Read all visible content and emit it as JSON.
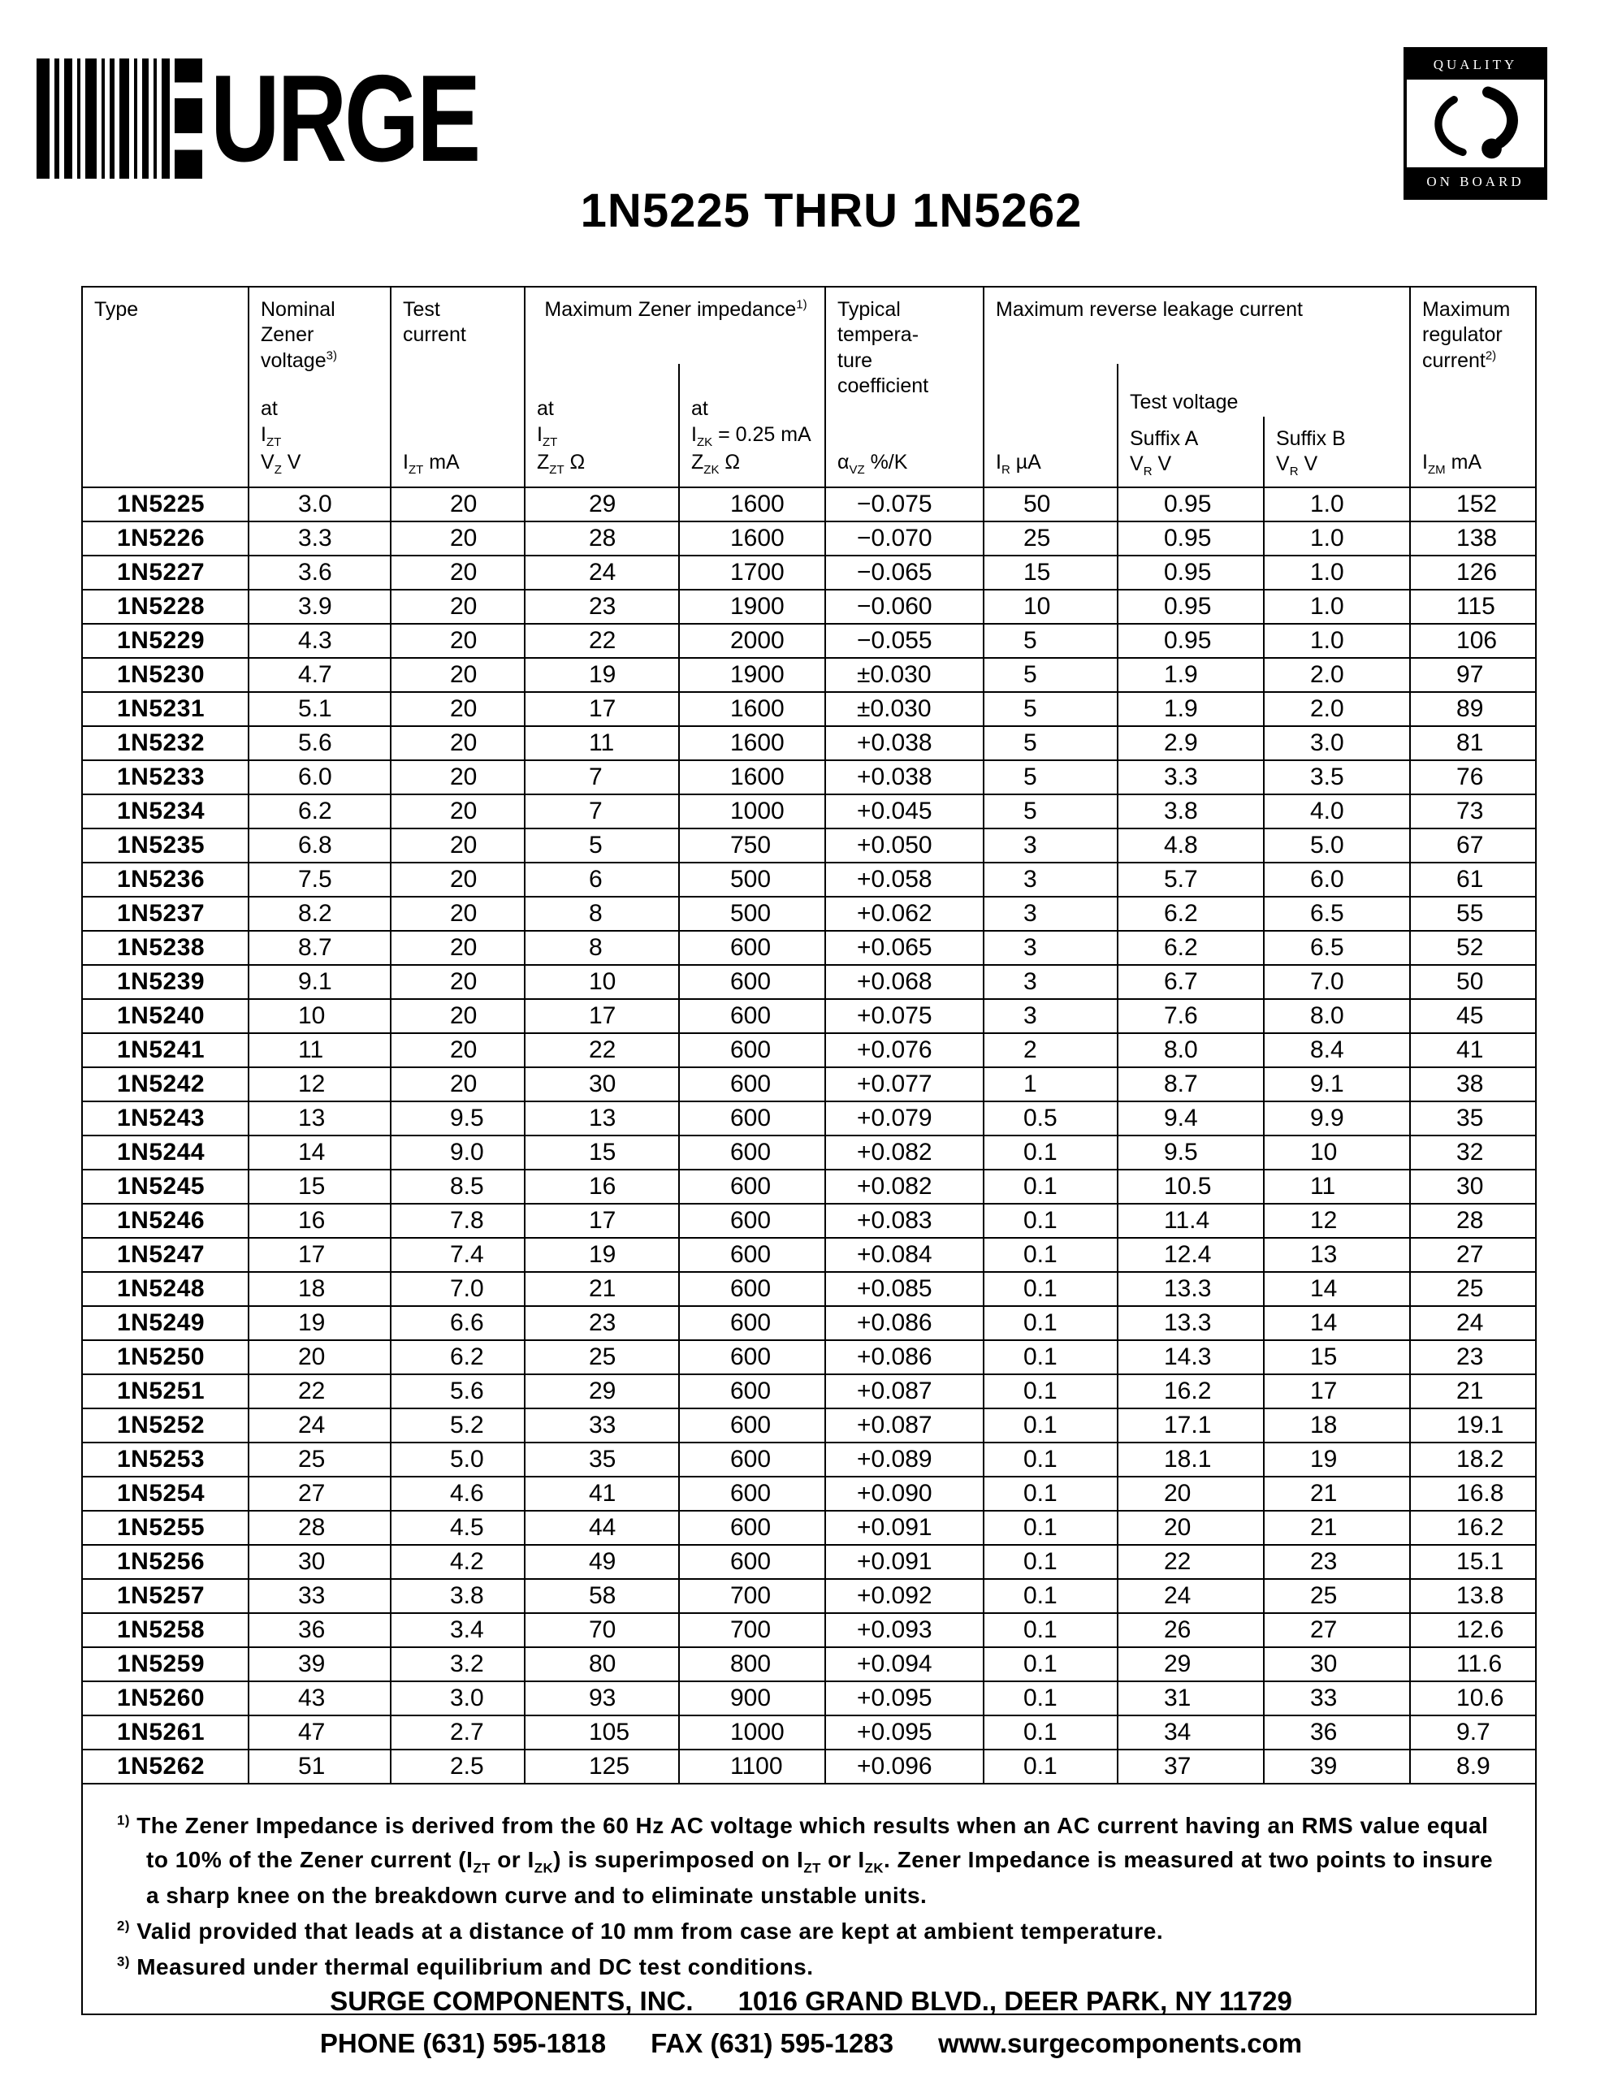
{
  "logo": {
    "brand_text": "SURGE",
    "brand_letters_after_bars": "URGE"
  },
  "badge": {
    "top": "QUALITY",
    "bottom": "ON BOARD"
  },
  "title": "1N5225 THRU 1N5262",
  "table": {
    "headers": {
      "type": "Type",
      "nominal": "Nominal\nZener\nvoltage^3)^",
      "nominal_sub": "at\nI~ZT~\nV~Z~ V",
      "test_current": "Test\ncurrent",
      "test_current_sub": "I~ZT~ mA",
      "impedance": "Maximum Zener impedance^1)^",
      "impedance_sub1": "at\nI~ZT~\nZ~ZT~ Ω",
      "impedance_sub2": "at\nI~ZK~ = 0.25 mA\nZ~ZK~ Ω",
      "temp": "Typical\ntempera-\nture\ncoefficient",
      "temp_sub": "α~VZ~ %/K",
      "leakage": "Maximum reverse leakage current",
      "leakage_sub_ir": "I~R~ µA",
      "test_voltage": "Test voltage",
      "suffix_a": "Suffix A\nV~R~ V",
      "suffix_b": "Suffix B\nV~R~ V",
      "regulator": "Maximum\nregulator\ncurrent^2)^",
      "regulator_sub": "I~ZM~ mA"
    },
    "rows": [
      [
        "1N5225",
        "3.0",
        "20",
        "29",
        "1600",
        "−0.075",
        "50",
        "0.95",
        "1.0",
        "152"
      ],
      [
        "1N5226",
        "3.3",
        "20",
        "28",
        "1600",
        "−0.070",
        "25",
        "0.95",
        "1.0",
        "138"
      ],
      [
        "1N5227",
        "3.6",
        "20",
        "24",
        "1700",
        "−0.065",
        "15",
        "0.95",
        "1.0",
        "126"
      ],
      [
        "1N5228",
        "3.9",
        "20",
        "23",
        "1900",
        "−0.060",
        "10",
        "0.95",
        "1.0",
        "115"
      ],
      [
        "1N5229",
        "4.3",
        "20",
        "22",
        "2000",
        "−0.055",
        "5",
        "0.95",
        "1.0",
        "106"
      ],
      [
        "1N5230",
        "4.7",
        "20",
        "19",
        "1900",
        "±0.030",
        "5",
        "1.9",
        "2.0",
        "97"
      ],
      [
        "1N5231",
        "5.1",
        "20",
        "17",
        "1600",
        "±0.030",
        "5",
        "1.9",
        "2.0",
        "89"
      ],
      [
        "1N5232",
        "5.6",
        "20",
        "11",
        "1600",
        "+0.038",
        "5",
        "2.9",
        "3.0",
        "81"
      ],
      [
        "1N5233",
        "6.0",
        "20",
        "7",
        "1600",
        "+0.038",
        "5",
        "3.3",
        "3.5",
        "76"
      ],
      [
        "1N5234",
        "6.2",
        "20",
        "7",
        "1000",
        "+0.045",
        "5",
        "3.8",
        "4.0",
        "73"
      ],
      [
        "1N5235",
        "6.8",
        "20",
        "5",
        "750",
        "+0.050",
        "3",
        "4.8",
        "5.0",
        "67"
      ],
      [
        "1N5236",
        "7.5",
        "20",
        "6",
        "500",
        "+0.058",
        "3",
        "5.7",
        "6.0",
        "61"
      ],
      [
        "1N5237",
        "8.2",
        "20",
        "8",
        "500",
        "+0.062",
        "3",
        "6.2",
        "6.5",
        "55"
      ],
      [
        "1N5238",
        "8.7",
        "20",
        "8",
        "600",
        "+0.065",
        "3",
        "6.2",
        "6.5",
        "52"
      ],
      [
        "1N5239",
        "9.1",
        "20",
        "10",
        "600",
        "+0.068",
        "3",
        "6.7",
        "7.0",
        "50"
      ],
      [
        "1N5240",
        "10",
        "20",
        "17",
        "600",
        "+0.075",
        "3",
        "7.6",
        "8.0",
        "45"
      ],
      [
        "1N5241",
        "11",
        "20",
        "22",
        "600",
        "+0.076",
        "2",
        "8.0",
        "8.4",
        "41"
      ],
      [
        "1N5242",
        "12",
        "20",
        "30",
        "600",
        "+0.077",
        "1",
        "8.7",
        "9.1",
        "38"
      ],
      [
        "1N5243",
        "13",
        "9.5",
        "13",
        "600",
        "+0.079",
        "0.5",
        "9.4",
        "9.9",
        "35"
      ],
      [
        "1N5244",
        "14",
        "9.0",
        "15",
        "600",
        "+0.082",
        "0.1",
        "9.5",
        "10",
        "32"
      ],
      [
        "1N5245",
        "15",
        "8.5",
        "16",
        "600",
        "+0.082",
        "0.1",
        "10.5",
        "11",
        "30"
      ],
      [
        "1N5246",
        "16",
        "7.8",
        "17",
        "600",
        "+0.083",
        "0.1",
        "11.4",
        "12",
        "28"
      ],
      [
        "1N5247",
        "17",
        "7.4",
        "19",
        "600",
        "+0.084",
        "0.1",
        "12.4",
        "13",
        "27"
      ],
      [
        "1N5248",
        "18",
        "7.0",
        "21",
        "600",
        "+0.085",
        "0.1",
        "13.3",
        "14",
        "25"
      ],
      [
        "1N5249",
        "19",
        "6.6",
        "23",
        "600",
        "+0.086",
        "0.1",
        "13.3",
        "14",
        "24"
      ],
      [
        "1N5250",
        "20",
        "6.2",
        "25",
        "600",
        "+0.086",
        "0.1",
        "14.3",
        "15",
        "23"
      ],
      [
        "1N5251",
        "22",
        "5.6",
        "29",
        "600",
        "+0.087",
        "0.1",
        "16.2",
        "17",
        "21"
      ],
      [
        "1N5252",
        "24",
        "5.2",
        "33",
        "600",
        "+0.087",
        "0.1",
        "17.1",
        "18",
        "19.1"
      ],
      [
        "1N5253",
        "25",
        "5.0",
        "35",
        "600",
        "+0.089",
        "0.1",
        "18.1",
        "19",
        "18.2"
      ],
      [
        "1N5254",
        "27",
        "4.6",
        "41",
        "600",
        "+0.090",
        "0.1",
        "20",
        "21",
        "16.8"
      ],
      [
        "1N5255",
        "28",
        "4.5",
        "44",
        "600",
        "+0.091",
        "0.1",
        "20",
        "21",
        "16.2"
      ],
      [
        "1N5256",
        "30",
        "4.2",
        "49",
        "600",
        "+0.091",
        "0.1",
        "22",
        "23",
        "15.1"
      ],
      [
        "1N5257",
        "33",
        "3.8",
        "58",
        "700",
        "+0.092",
        "0.1",
        "24",
        "25",
        "13.8"
      ],
      [
        "1N5258",
        "36",
        "3.4",
        "70",
        "700",
        "+0.093",
        "0.1",
        "26",
        "27",
        "12.6"
      ],
      [
        "1N5259",
        "39",
        "3.2",
        "80",
        "800",
        "+0.094",
        "0.1",
        "29",
        "30",
        "11.6"
      ],
      [
        "1N5260",
        "43",
        "3.0",
        "93",
        "900",
        "+0.095",
        "0.1",
        "31",
        "33",
        "10.6"
      ],
      [
        "1N5261",
        "47",
        "2.7",
        "105",
        "1000",
        "+0.095",
        "0.1",
        "34",
        "36",
        "9.7"
      ],
      [
        "1N5262",
        "51",
        "2.5",
        "125",
        "1100",
        "+0.096",
        "0.1",
        "37",
        "39",
        "8.9"
      ]
    ]
  },
  "footnotes": [
    "^1)^ The Zener Impedance is derived from the 60 Hz AC voltage which results when an AC current having an RMS value equal to 10% of the Zener current (I~ZT~ or I~ZK~) is superimposed on I~ZT~ or I~ZK~. Zener Impedance is measured at two points to insure a sharp knee on the breakdown curve and to eliminate unstable units.",
    "^2)^ Valid provided that leads at a distance of 10 mm from case are kept at ambient temperature.",
    "^3)^ Measured under thermal equilibrium and DC test conditions."
  ],
  "footer": {
    "company": "SURGE COMPONENTS, INC.",
    "address": "1016 GRAND BLVD., DEER PARK, NY  11729",
    "phone": "PHONE (631) 595-1818",
    "fax": "FAX (631) 595-1283",
    "web": "www.surgecomponents.com"
  }
}
